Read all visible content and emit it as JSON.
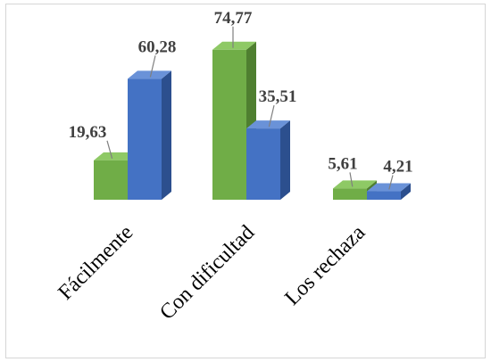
{
  "chart_data": {
    "type": "bar",
    "style": "3d-clustered-column",
    "categories": [
      "Fácilmente",
      "Con dificultad",
      "Los rechaza"
    ],
    "series": [
      {
        "values": [
          19.63,
          74.77,
          5.61
        ],
        "labels": [
          "19,63",
          "74,77",
          "5,61"
        ]
      },
      {
        "values": [
          60.28,
          35.51,
          4.21
        ],
        "labels": [
          "60,28",
          "35,51",
          "4,21"
        ]
      }
    ],
    "title": "",
    "xlabel": "",
    "ylabel": "",
    "ylim": [
      0,
      80
    ],
    "grid": false,
    "legend": "none",
    "data_labels": true,
    "colors": {
      "series_1": {
        "front": "#70ad47",
        "top": "#8ec965",
        "side": "#4f7f30"
      },
      "series_2": {
        "front": "#4472c4",
        "top": "#6a92d8",
        "side": "#2c4f8e"
      },
      "label_text": "#404040",
      "leader_line": "#7f7f7f"
    }
  }
}
